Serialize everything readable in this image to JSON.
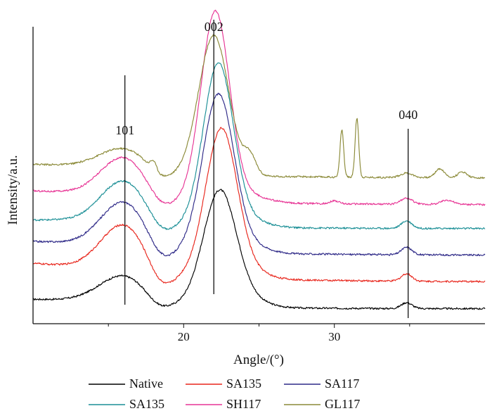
{
  "chart_data": {
    "type": "line",
    "title": "",
    "xlabel": "Angle/(°)",
    "ylabel": "Intensity/a.u.",
    "xlim": [
      10,
      40
    ],
    "ylim": [
      0,
      100
    ],
    "xticks": [
      20,
      30
    ],
    "grid": false,
    "legend_position": "bottom",
    "annotations": [
      {
        "label": "101",
        "x": 16.1
      },
      {
        "label": "002",
        "x": 22.0
      },
      {
        "label": "040",
        "x": 34.9
      }
    ],
    "series": [
      {
        "name": "Native",
        "color": "#000000",
        "baseline": 5,
        "slope": 1.8,
        "peaks": [
          [
            12.4,
            1.6,
            5.0
          ],
          [
            16.0,
            9.0,
            1.6
          ],
          [
            18.3,
            -3.0,
            0.8
          ],
          [
            22.4,
            39.0,
            1.1
          ],
          [
            24.5,
            2.0,
            1.2
          ],
          [
            34.8,
            2.0,
            0.35
          ]
        ]
      },
      {
        "name": "SA135",
        "color": "#e8261c",
        "baseline": 14,
        "slope": 5.2,
        "peaks": [
          [
            13.0,
            1.5,
            4.0
          ],
          [
            16.0,
            15.5,
            1.5
          ],
          [
            18.5,
            -6.0,
            0.8
          ],
          [
            22.5,
            50.0,
            1.05
          ],
          [
            24.5,
            2.0,
            1.2
          ],
          [
            34.8,
            2.5,
            0.35
          ]
        ]
      },
      {
        "name": "SA117",
        "color": "#2f2a88",
        "baseline": 23,
        "slope": 3.6,
        "peaks": [
          [
            13.0,
            1.5,
            4.0
          ],
          [
            16.0,
            15.0,
            1.5
          ],
          [
            18.5,
            -5.0,
            0.8
          ],
          [
            22.3,
            53.0,
            1.05
          ],
          [
            24.5,
            2.0,
            1.2
          ],
          [
            34.8,
            2.5,
            0.35
          ]
        ]
      },
      {
        "name": "SA135",
        "color": "#1b8f96",
        "baseline": 32,
        "slope": 1.8,
        "peaks": [
          [
            13.0,
            1.5,
            4.0
          ],
          [
            16.0,
            14.0,
            1.5
          ],
          [
            18.5,
            -4.0,
            0.8
          ],
          [
            22.3,
            55.0,
            1.0
          ],
          [
            24.5,
            2.0,
            1.2
          ],
          [
            34.8,
            2.5,
            0.35
          ]
        ]
      },
      {
        "name": "SH117",
        "color": "#e73595",
        "baseline": 40,
        "slope": 3.6,
        "peaks": [
          [
            13.0,
            1.5,
            4.0
          ],
          [
            16.0,
            13.0,
            1.5
          ],
          [
            18.5,
            -4.0,
            0.8
          ],
          [
            22.1,
            64.0,
            0.95
          ],
          [
            24.5,
            2.0,
            1.2
          ],
          [
            30.0,
            1.0,
            0.3
          ],
          [
            34.8,
            2.0,
            0.4
          ],
          [
            37.5,
            1.5,
            0.4
          ]
        ]
      },
      {
        "name": "GL117",
        "color": "#8b8a38",
        "baseline": 49,
        "slope": 3.6,
        "peaks": [
          [
            13.0,
            1.5,
            4.0
          ],
          [
            16.0,
            7.0,
            1.6
          ],
          [
            18.0,
            3.0,
            0.2
          ],
          [
            18.5,
            -3.0,
            0.8
          ],
          [
            22.0,
            47.0,
            1.0
          ],
          [
            24.4,
            6.0,
            0.4
          ],
          [
            30.5,
            16.0,
            0.12
          ],
          [
            31.5,
            20.0,
            0.12
          ],
          [
            34.8,
            1.5,
            0.4
          ],
          [
            37.0,
            3.0,
            0.3
          ],
          [
            38.5,
            2.0,
            0.3
          ]
        ]
      }
    ],
    "legend": {
      "rows": [
        [
          "Native",
          "SA135",
          "SA117"
        ],
        [
          "SA135",
          "SH117",
          "GL117"
        ]
      ]
    }
  }
}
